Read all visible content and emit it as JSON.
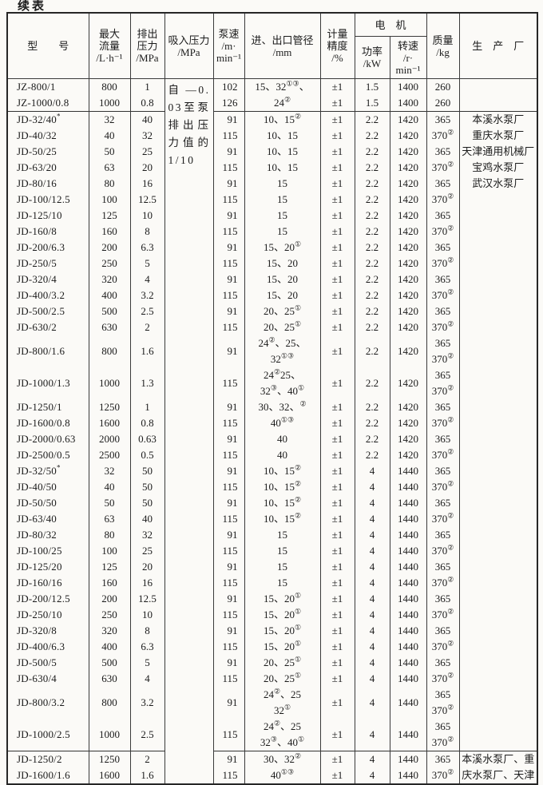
{
  "title": "续表",
  "columns": {
    "model": "型　　号",
    "max_flow": "最大\n流量\n/L·h⁻¹",
    "discharge_pressure": "排出\n压力\n/MPa",
    "suction_pressure": "吸入压力\n/MPa",
    "pump_speed": "泵速\n/m·\nmin⁻¹",
    "pipe_diameter": "进、出口管径\n/mm",
    "metering_accuracy": "计量\n精度\n/%",
    "motor_group": "电　机",
    "motor_power": "功率\n/kW",
    "motor_speed": "转速\n/r·\nmin⁻¹",
    "mass": "质量\n/kg",
    "manufacturer": "生　产　厂"
  },
  "suction_pressure_note": "自—0.03至泵排出压力值的1/10",
  "rows": [
    {
      "model": "JZ-800/1",
      "flow": "800",
      "pressure": "1",
      "speed": "102",
      "pipe": [
        "15、32①③、"
      ],
      "accuracy": "±1",
      "power": "1.5",
      "rpm": "1400",
      "mass": [
        "260"
      ],
      "maker": "",
      "group_start": false
    },
    {
      "model": "JZ-1000/0.8",
      "flow": "1000",
      "pressure": "0.8",
      "speed": "126",
      "pipe": [
        "24②"
      ],
      "accuracy": "±1",
      "power": "1.5",
      "rpm": "1400",
      "mass": [
        "260"
      ],
      "maker": "",
      "group_start": false
    },
    {
      "model": "JD-32/40*",
      "flow": "32",
      "pressure": "40",
      "speed": "91",
      "pipe": [
        "10、15②"
      ],
      "accuracy": "±1",
      "power": "2.2",
      "rpm": "1420",
      "mass": [
        "365"
      ],
      "maker": "本溪水泵厂",
      "group_start": true
    },
    {
      "model": "JD-40/32",
      "flow": "40",
      "pressure": "32",
      "speed": "115",
      "pipe": [
        "10、15"
      ],
      "accuracy": "±1",
      "power": "2.2",
      "rpm": "1420",
      "mass": [
        "370②"
      ],
      "maker": "重庆水泵厂",
      "group_start": false
    },
    {
      "model": "JD-50/25",
      "flow": "50",
      "pressure": "25",
      "speed": "91",
      "pipe": [
        "10、15"
      ],
      "accuracy": "±1",
      "power": "2.2",
      "rpm": "1420",
      "mass": [
        "365"
      ],
      "maker": "天津通用机械厂",
      "group_start": false
    },
    {
      "model": "JD-63/20",
      "flow": "63",
      "pressure": "20",
      "speed": "115",
      "pipe": [
        "10、15"
      ],
      "accuracy": "±1",
      "power": "2.2",
      "rpm": "1420",
      "mass": [
        "370②"
      ],
      "maker": "宝鸡水泵厂",
      "group_start": false
    },
    {
      "model": "JD-80/16",
      "flow": "80",
      "pressure": "16",
      "speed": "91",
      "pipe": [
        "15"
      ],
      "accuracy": "±1",
      "power": "2.2",
      "rpm": "1420",
      "mass": [
        "365"
      ],
      "maker": "武汉水泵厂",
      "group_start": false
    },
    {
      "model": "JD-100/12.5",
      "flow": "100",
      "pressure": "12.5",
      "speed": "115",
      "pipe": [
        "15"
      ],
      "accuracy": "±1",
      "power": "2.2",
      "rpm": "1420",
      "mass": [
        "370②"
      ],
      "maker": "",
      "group_start": false
    },
    {
      "model": "JD-125/10",
      "flow": "125",
      "pressure": "10",
      "speed": "91",
      "pipe": [
        "15"
      ],
      "accuracy": "±1",
      "power": "2.2",
      "rpm": "1420",
      "mass": [
        "365"
      ],
      "maker": "",
      "group_start": false
    },
    {
      "model": "JD-160/8",
      "flow": "160",
      "pressure": "8",
      "speed": "115",
      "pipe": [
        "15"
      ],
      "accuracy": "±1",
      "power": "2.2",
      "rpm": "1420",
      "mass": [
        "370②"
      ],
      "maker": "",
      "group_start": false
    },
    {
      "model": "JD-200/6.3",
      "flow": "200",
      "pressure": "6.3",
      "speed": "91",
      "pipe": [
        "15、20①"
      ],
      "accuracy": "±1",
      "power": "2.2",
      "rpm": "1420",
      "mass": [
        "365"
      ],
      "maker": "",
      "group_start": false
    },
    {
      "model": "JD-250/5",
      "flow": "250",
      "pressure": "5",
      "speed": "115",
      "pipe": [
        "15、20"
      ],
      "accuracy": "±1",
      "power": "2.2",
      "rpm": "1420",
      "mass": [
        "370②"
      ],
      "maker": "",
      "group_start": false
    },
    {
      "model": "JD-320/4",
      "flow": "320",
      "pressure": "4",
      "speed": "91",
      "pipe": [
        "15、20"
      ],
      "accuracy": "±1",
      "power": "2.2",
      "rpm": "1420",
      "mass": [
        "365"
      ],
      "maker": "",
      "group_start": false
    },
    {
      "model": "JD-400/3.2",
      "flow": "400",
      "pressure": "3.2",
      "speed": "115",
      "pipe": [
        "15、20"
      ],
      "accuracy": "±1",
      "power": "2.2",
      "rpm": "1420",
      "mass": [
        "370②"
      ],
      "maker": "",
      "group_start": false
    },
    {
      "model": "JD-500/2.5",
      "flow": "500",
      "pressure": "2.5",
      "speed": "91",
      "pipe": [
        "20、25①"
      ],
      "accuracy": "±1",
      "power": "2.2",
      "rpm": "1420",
      "mass": [
        "365"
      ],
      "maker": "",
      "group_start": false
    },
    {
      "model": "JD-630/2",
      "flow": "630",
      "pressure": "2",
      "speed": "115",
      "pipe": [
        "20、25①"
      ],
      "accuracy": "±1",
      "power": "2.2",
      "rpm": "1420",
      "mass": [
        "370②"
      ],
      "maker": "",
      "group_start": false
    },
    {
      "model": "JD-800/1.6",
      "flow": "800",
      "pressure": "1.6",
      "speed": "91",
      "pipe": [
        "24②、25、",
        "32①③"
      ],
      "accuracy": "±1",
      "power": "2.2",
      "rpm": "1420",
      "mass": [
        "365",
        "370②"
      ],
      "maker": "",
      "group_start": false
    },
    {
      "model": "JD-1000/1.3",
      "flow": "1000",
      "pressure": "1.3",
      "speed": "115",
      "pipe": [
        "24②25、",
        "32③、40①"
      ],
      "accuracy": "±1",
      "power": "2.2",
      "rpm": "1420",
      "mass": [
        "365",
        "370②"
      ],
      "maker": "",
      "group_start": false
    },
    {
      "model": "JD-1250/1",
      "flow": "1250",
      "pressure": "1",
      "speed": "91",
      "pipe": [
        "30、32、②"
      ],
      "accuracy": "±1",
      "power": "2.2",
      "rpm": "1420",
      "mass": [
        "365"
      ],
      "maker": "",
      "group_start": false
    },
    {
      "model": "JD-1600/0.8",
      "flow": "1600",
      "pressure": "0.8",
      "speed": "115",
      "pipe": [
        "40①③"
      ],
      "accuracy": "±1",
      "power": "2.2",
      "rpm": "1420",
      "mass": [
        "370②"
      ],
      "maker": "",
      "group_start": false
    },
    {
      "model": "JD-2000/0.63",
      "flow": "2000",
      "pressure": "0.63",
      "speed": "91",
      "pipe": [
        "40"
      ],
      "accuracy": "±1",
      "power": "2.2",
      "rpm": "1420",
      "mass": [
        "365"
      ],
      "maker": "",
      "group_start": false
    },
    {
      "model": "JD-2500/0.5",
      "flow": "2500",
      "pressure": "0.5",
      "speed": "115",
      "pipe": [
        "40"
      ],
      "accuracy": "±1",
      "power": "2.2",
      "rpm": "1420",
      "mass": [
        "370②"
      ],
      "maker": "",
      "group_start": false
    },
    {
      "model": "JD-32/50*",
      "flow": "32",
      "pressure": "50",
      "speed": "91",
      "pipe": [
        "10、15②"
      ],
      "accuracy": "±1",
      "power": "4",
      "rpm": "1440",
      "mass": [
        "365"
      ],
      "maker": "",
      "group_start": false
    },
    {
      "model": "JD-40/50",
      "flow": "40",
      "pressure": "50",
      "speed": "115",
      "pipe": [
        "10、15②"
      ],
      "accuracy": "±1",
      "power": "4",
      "rpm": "1440",
      "mass": [
        "370②"
      ],
      "maker": "",
      "group_start": false
    },
    {
      "model": "JD-50/50",
      "flow": "50",
      "pressure": "50",
      "speed": "91",
      "pipe": [
        "10、15②"
      ],
      "accuracy": "±1",
      "power": "4",
      "rpm": "1440",
      "mass": [
        "365"
      ],
      "maker": "",
      "group_start": false
    },
    {
      "model": "JD-63/40",
      "flow": "63",
      "pressure": "40",
      "speed": "115",
      "pipe": [
        "10、15②"
      ],
      "accuracy": "±1",
      "power": "4",
      "rpm": "1440",
      "mass": [
        "370②"
      ],
      "maker": "",
      "group_start": false
    },
    {
      "model": "JD-80/32",
      "flow": "80",
      "pressure": "32",
      "speed": "91",
      "pipe": [
        "15"
      ],
      "accuracy": "±1",
      "power": "4",
      "rpm": "1440",
      "mass": [
        "365"
      ],
      "maker": "",
      "group_start": false
    },
    {
      "model": "JD-100/25",
      "flow": "100",
      "pressure": "25",
      "speed": "115",
      "pipe": [
        "15"
      ],
      "accuracy": "±1",
      "power": "4",
      "rpm": "1440",
      "mass": [
        "370②"
      ],
      "maker": "",
      "group_start": false
    },
    {
      "model": "JD-125/20",
      "flow": "125",
      "pressure": "20",
      "speed": "91",
      "pipe": [
        "15"
      ],
      "accuracy": "±1",
      "power": "4",
      "rpm": "1440",
      "mass": [
        "365"
      ],
      "maker": "",
      "group_start": false
    },
    {
      "model": "JD-160/16",
      "flow": "160",
      "pressure": "16",
      "speed": "115",
      "pipe": [
        "15"
      ],
      "accuracy": "±1",
      "power": "4",
      "rpm": "1440",
      "mass": [
        "370②"
      ],
      "maker": "",
      "group_start": false
    },
    {
      "model": "JD-200/12.5",
      "flow": "200",
      "pressure": "12.5",
      "speed": "91",
      "pipe": [
        "15、20①"
      ],
      "accuracy": "±1",
      "power": "4",
      "rpm": "1440",
      "mass": [
        "365"
      ],
      "maker": "",
      "group_start": false
    },
    {
      "model": "JD-250/10",
      "flow": "250",
      "pressure": "10",
      "speed": "115",
      "pipe": [
        "15、20①"
      ],
      "accuracy": "±1",
      "power": "4",
      "rpm": "1440",
      "mass": [
        "370②"
      ],
      "maker": "",
      "group_start": false
    },
    {
      "model": "JD-320/8",
      "flow": "320",
      "pressure": "8",
      "speed": "91",
      "pipe": [
        "15、20①"
      ],
      "accuracy": "±1",
      "power": "4",
      "rpm": "1440",
      "mass": [
        "365"
      ],
      "maker": "",
      "group_start": false
    },
    {
      "model": "JD-400/6.3",
      "flow": "400",
      "pressure": "6.3",
      "speed": "115",
      "pipe": [
        "15、20①"
      ],
      "accuracy": "±1",
      "power": "4",
      "rpm": "1440",
      "mass": [
        "370②"
      ],
      "maker": "",
      "group_start": false
    },
    {
      "model": "JD-500/5",
      "flow": "500",
      "pressure": "5",
      "speed": "91",
      "pipe": [
        "20、25①"
      ],
      "accuracy": "±1",
      "power": "4",
      "rpm": "1440",
      "mass": [
        "365"
      ],
      "maker": "",
      "group_start": false
    },
    {
      "model": "JD-630/4",
      "flow": "630",
      "pressure": "4",
      "speed": "115",
      "pipe": [
        "20、25①"
      ],
      "accuracy": "±1",
      "power": "4",
      "rpm": "1440",
      "mass": [
        "370②"
      ],
      "maker": "",
      "group_start": false
    },
    {
      "model": "JD-800/3.2",
      "flow": "800",
      "pressure": "3.2",
      "speed": "91",
      "pipe": [
        "24②、25",
        "32①"
      ],
      "accuracy": "±1",
      "power": "4",
      "rpm": "1440",
      "mass": [
        "365",
        "370②"
      ],
      "maker": "",
      "group_start": false
    },
    {
      "model": "JD-1000/2.5",
      "flow": "1000",
      "pressure": "2.5",
      "speed": "115",
      "pipe": [
        "24②、25",
        "32③、40①"
      ],
      "accuracy": "±1",
      "power": "4",
      "rpm": "1440",
      "mass": [
        "365",
        "370②"
      ],
      "maker": "",
      "group_start": false
    },
    {
      "model": "JD-1250/2",
      "flow": "1250",
      "pressure": "2",
      "speed": "91",
      "pipe": [
        "30、32②"
      ],
      "accuracy": "±1",
      "power": "4",
      "rpm": "1440",
      "mass": [
        "365"
      ],
      "maker": "本溪水泵厂、重",
      "group_start": true
    },
    {
      "model": "JD-1600/1.6",
      "flow": "1600",
      "pressure": "1.6",
      "speed": "115",
      "pipe": [
        "40①③"
      ],
      "accuracy": "±1",
      "power": "4",
      "rpm": "1440",
      "mass": [
        "370②"
      ],
      "maker": "庆水泵厂、天津",
      "group_start": false
    }
  ]
}
